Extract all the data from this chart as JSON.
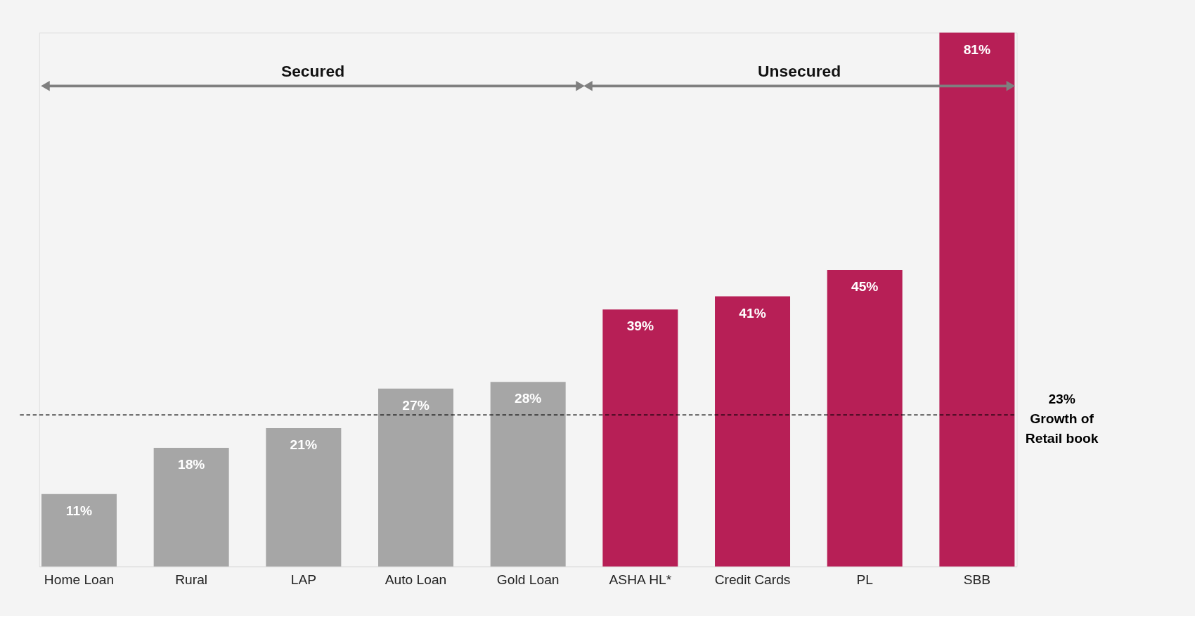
{
  "chart_data": {
    "type": "bar",
    "categories": [
      "Home Loan",
      "Rural",
      "LAP",
      "Auto Loan",
      "Gold Loan",
      "ASHA HL*",
      "Credit Cards",
      "PL",
      "SBB"
    ],
    "values": [
      11,
      18,
      21,
      27,
      28,
      39,
      41,
      45,
      81
    ],
    "value_labels": [
      "11%",
      "18%",
      "21%",
      "27%",
      "28%",
      "39%",
      "41%",
      "45%",
      "81%"
    ],
    "colors": [
      "#a6a6a6",
      "#a6a6a6",
      "#a6a6a6",
      "#a6a6a6",
      "#a6a6a6",
      "#b71f56",
      "#b71f56",
      "#b71f56",
      "#b71f56"
    ],
    "annotations": [
      "Secured",
      "Unsecured"
    ],
    "ref_lines": [
      {
        "axis": "y",
        "value": 23,
        "label": "23% Growth of Retail book",
        "color": "#000000",
        "line_style": "dashed"
      }
    ],
    "tick_labels": "x"
  }
}
